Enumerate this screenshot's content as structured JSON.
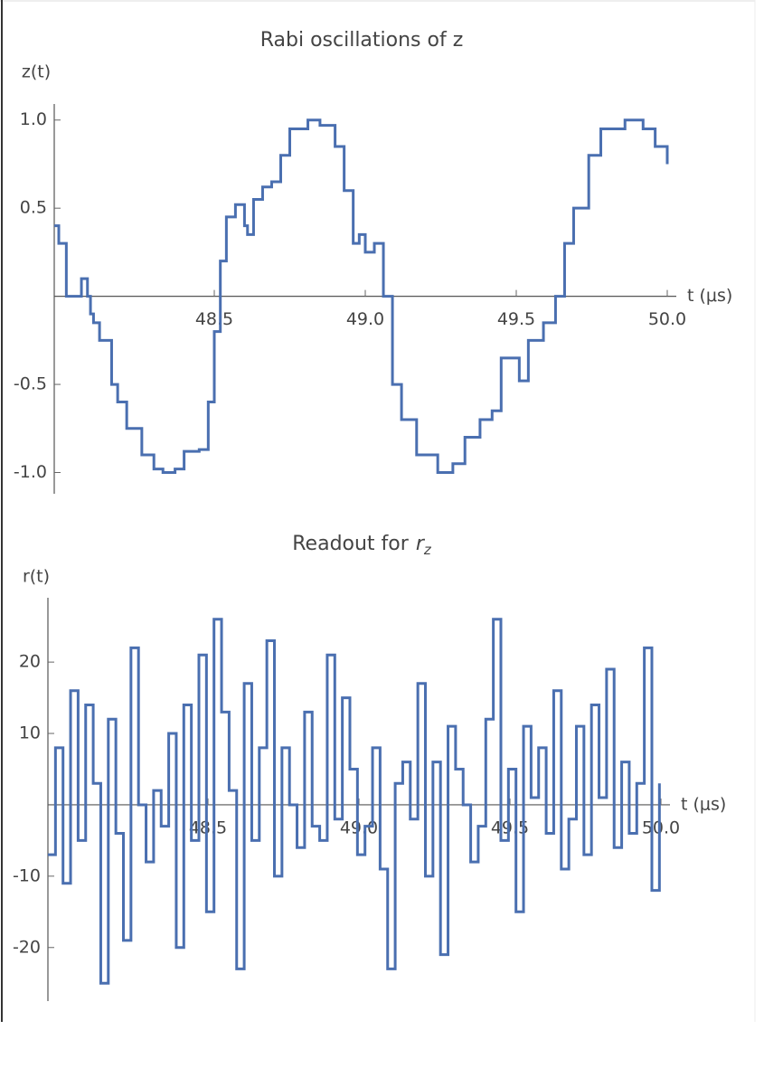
{
  "chart_data": [
    {
      "type": "line",
      "interpolation": "step",
      "title": "Rabi oscillations of z",
      "y_label": "z(t)",
      "x_label": "t (μs)",
      "color": "#4a6fb0",
      "xlim": [
        47.97,
        50.0
      ],
      "ylim": [
        -1.1,
        1.05
      ],
      "xticks": [
        48.5,
        {
          "value": 49,
          "label": "49.0"
        },
        49.5,
        {
          "value": 50,
          "label": "50.0"
        }
      ],
      "yticks": [
        {
          "value": -1,
          "label": "-1.0"
        },
        -0.5,
        0.5,
        {
          "value": 1,
          "label": "1.0"
        }
      ],
      "x": [
        47.97,
        47.985,
        48.01,
        48.06,
        48.08,
        48.09,
        48.1,
        48.12,
        48.15,
        48.16,
        48.18,
        48.21,
        48.26,
        48.3,
        48.33,
        48.37,
        48.4,
        48.45,
        48.48,
        48.5,
        48.52,
        48.54,
        48.57,
        48.6,
        48.61,
        48.63,
        48.66,
        48.69,
        48.72,
        48.75,
        48.81,
        48.85,
        48.9,
        48.93,
        48.96,
        48.98,
        49.0,
        49.03,
        49.06,
        49.09,
        49.12,
        49.17,
        49.24,
        49.29,
        49.33,
        49.38,
        49.42,
        49.45,
        49.48,
        49.51,
        49.54,
        49.59,
        49.63,
        49.66,
        49.69,
        49.74,
        49.78,
        49.86,
        49.92,
        49.96,
        50.0
      ],
      "values": [
        0.4,
        0.3,
        0.0,
        0.1,
        0.0,
        -0.1,
        -0.15,
        -0.25,
        -0.25,
        -0.5,
        -0.6,
        -0.75,
        -0.9,
        -0.98,
        -1.0,
        -0.98,
        -0.88,
        -0.87,
        -0.6,
        -0.2,
        0.2,
        0.45,
        0.52,
        0.4,
        0.35,
        0.55,
        0.62,
        0.65,
        0.8,
        0.95,
        1.0,
        0.97,
        0.85,
        0.6,
        0.3,
        0.35,
        0.25,
        0.3,
        0.0,
        -0.5,
        -0.7,
        -0.9,
        -1.0,
        -0.95,
        -0.8,
        -0.7,
        -0.65,
        -0.35,
        -0.35,
        -0.48,
        -0.25,
        -0.15,
        0.0,
        0.3,
        0.5,
        0.8,
        0.95,
        1.0,
        0.95,
        0.85,
        0.75
      ]
    },
    {
      "type": "line",
      "interpolation": "step",
      "title": "Readout for",
      "title_math": "r",
      "title_subscript": "z",
      "y_label": "r(t)",
      "x_label": "t (μs)",
      "color": "#4a6fb0",
      "xlim": [
        47.97,
        50.0
      ],
      "ylim": [
        -27,
        28
      ],
      "xticks": [
        48.5,
        {
          "value": 49,
          "label": "49.0"
        },
        49.5,
        {
          "value": 50,
          "label": "50.0"
        }
      ],
      "yticks": [
        -20,
        -10,
        10,
        20
      ],
      "x": [
        47.97,
        47.995,
        48.02,
        48.045,
        48.07,
        48.095,
        48.12,
        48.145,
        48.17,
        48.195,
        48.22,
        48.245,
        48.27,
        48.295,
        48.32,
        48.345,
        48.37,
        48.395,
        48.42,
        48.445,
        48.47,
        48.495,
        48.52,
        48.545,
        48.57,
        48.595,
        48.62,
        48.645,
        48.67,
        48.695,
        48.72,
        48.745,
        48.77,
        48.795,
        48.82,
        48.845,
        48.87,
        48.895,
        48.92,
        48.945,
        48.97,
        48.995,
        49.02,
        49.045,
        49.07,
        49.095,
        49.12,
        49.145,
        49.17,
        49.195,
        49.22,
        49.245,
        49.27,
        49.295,
        49.32,
        49.345,
        49.37,
        49.395,
        49.42,
        49.445,
        49.47,
        49.495,
        49.52,
        49.545,
        49.57,
        49.595,
        49.62,
        49.645,
        49.67,
        49.695,
        49.72,
        49.745,
        49.77,
        49.795,
        49.82,
        49.845,
        49.87,
        49.895,
        49.92,
        49.945,
        49.97,
        49.995
      ],
      "values": [
        -7,
        8,
        -11,
        16,
        -5,
        14,
        3,
        -25,
        12,
        -4,
        -19,
        22,
        0,
        -8,
        2,
        -3,
        10,
        -20,
        14,
        -5,
        21,
        -15,
        26,
        13,
        2,
        -23,
        17,
        -5,
        8,
        23,
        -10,
        8,
        0,
        -6,
        13,
        -3,
        -5,
        21,
        -2,
        15,
        5,
        -7,
        -3,
        8,
        -9,
        -23,
        3,
        6,
        -2,
        17,
        -10,
        6,
        -21,
        11,
        5,
        0,
        -8,
        -3,
        12,
        26,
        -5,
        5,
        -15,
        11,
        1,
        8,
        -4,
        16,
        -9,
        -2,
        11,
        -7,
        14,
        1,
        19,
        -6,
        6,
        -4,
        3,
        22,
        -12,
        3
      ]
    }
  ]
}
